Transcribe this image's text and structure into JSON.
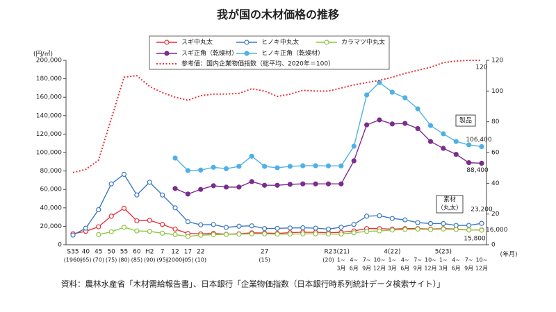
{
  "chart_data": {
    "type": "line",
    "title": "我が国の木材価格の推移",
    "ylabel": "(円/㎥)",
    "xlabel": "(年月)",
    "source": "資料：農林水産省「木材需給報告書」、日本銀行「企業物価指数（日本銀行時系列統計データ検索サイト）」",
    "categories": [
      "S35",
      "40",
      "45",
      "50",
      "55",
      "60",
      "H2",
      "7",
      "12",
      "17",
      "22",
      null,
      null,
      null,
      null,
      "27",
      null,
      null,
      null,
      null,
      "R2",
      "3(21)",
      null,
      null,
      null,
      "4(22)",
      null,
      null,
      null,
      "5(23)",
      null,
      null,
      null
    ],
    "category_row2": [
      "(1960)",
      "(65)",
      "(70)",
      "(75)",
      "(80)",
      "(85)",
      "(90)",
      "(95)",
      "(2000)",
      "(05)",
      "(10)",
      null,
      null,
      null,
      null,
      "(15)",
      null,
      null,
      null,
      null,
      "(20)",
      "1~",
      "4~",
      "7~",
      "10~",
      "1~",
      "4~",
      "7~",
      "10~",
      "1~",
      "4~",
      "7~",
      "10~"
    ],
    "category_row3": [
      null,
      null,
      null,
      null,
      null,
      null,
      null,
      null,
      null,
      null,
      null,
      null,
      null,
      null,
      null,
      null,
      null,
      null,
      null,
      null,
      null,
      "3月",
      "6月",
      "9月",
      "12月",
      "3月",
      "6月",
      "9月",
      "12月",
      "3月",
      "6月",
      "9月",
      "12月"
    ],
    "ylim": [
      0,
      200000
    ],
    "yticks": [
      0,
      {
        "value": 20000,
        "label": "20,000"
      },
      {
        "value": 40000,
        "label": "40,000"
      },
      {
        "value": 60000,
        "label": "60,000"
      },
      {
        "value": 80000,
        "label": "80,000"
      },
      {
        "value": 100000,
        "label": "100,000"
      },
      {
        "value": 120000,
        "label": "120,000"
      },
      {
        "value": 140000,
        "label": "140,000"
      },
      {
        "value": 160000,
        "label": "160,000"
      },
      {
        "value": 180000,
        "label": "180,000"
      },
      {
        "value": 200000,
        "label": "200,000"
      }
    ],
    "y2lim": [
      0,
      120
    ],
    "y2ticks": [
      0,
      20,
      40,
      60,
      80,
      100,
      120
    ],
    "grid": false,
    "annotations": [
      {
        "lines": [
          "製品"
        ]
      },
      {
        "lines": [
          "素材",
          "（丸太）"
        ]
      }
    ],
    "series": [
      {
        "name": "スギ中丸太",
        "color": "#e8303a",
        "marker": "open",
        "values": [
          12000,
          14500,
          19500,
          31000,
          39600,
          26000,
          26500,
          22000,
          17000,
          12200,
          11800,
          12300,
          11400,
          11900,
          12900,
          12700,
          12300,
          13100,
          13600,
          13500,
          13100,
          13400,
          15000,
          17500,
          17500,
          17000,
          17500,
          17500,
          17000,
          17500,
          17000,
          16000,
          16000
        ],
        "value_labels": [
          null,
          null,
          null,
          null,
          null,
          null,
          null,
          null,
          null,
          null,
          null,
          null,
          null,
          null,
          null,
          null,
          null,
          null,
          null,
          null,
          null,
          null,
          null,
          null,
          null,
          null,
          null,
          null,
          null,
          null,
          null,
          null,
          "16,000"
        ]
      },
      {
        "name": "ヒノキ中丸太",
        "color": "#3a78c4",
        "marker": "open",
        "values": [
          10500,
          18000,
          38000,
          66000,
          76400,
          54000,
          67800,
          54000,
          40000,
          25000,
          21600,
          21900,
          18800,
          20100,
          20500,
          17500,
          17800,
          18200,
          18400,
          18000,
          17000,
          19000,
          22000,
          31000,
          31500,
          28500,
          27000,
          24000,
          23000,
          23000,
          21000,
          21000,
          23200
        ],
        "value_labels": [
          null,
          null,
          null,
          null,
          null,
          null,
          null,
          null,
          null,
          null,
          null,
          null,
          null,
          null,
          null,
          null,
          null,
          null,
          null,
          null,
          null,
          null,
          null,
          null,
          null,
          null,
          null,
          null,
          null,
          null,
          null,
          null,
          "23,200"
        ]
      },
      {
        "name": "カラマツ中丸太",
        "color": "#8cc63f",
        "marker": "open",
        "values": [
          null,
          null,
          11000,
          14000,
          19000,
          15000,
          14500,
          12500,
          11000,
          9000,
          10400,
          11000,
          11200,
          11500,
          11800,
          11800,
          11500,
          11600,
          11800,
          11800,
          11600,
          11600,
          13000,
          14500,
          15000,
          16000,
          16500,
          17000,
          16500,
          17000,
          16500,
          16000,
          15800
        ],
        "value_labels": [
          null,
          null,
          null,
          null,
          null,
          null,
          null,
          null,
          null,
          null,
          null,
          null,
          null,
          null,
          null,
          null,
          null,
          null,
          null,
          null,
          null,
          null,
          null,
          null,
          null,
          null,
          null,
          null,
          null,
          null,
          null,
          null,
          "15,800"
        ]
      },
      {
        "name": "スギ正角（乾燥材）",
        "color": "#7b2d8e",
        "marker": "filled",
        "values": [
          null,
          null,
          null,
          null,
          null,
          null,
          null,
          null,
          61000,
          55000,
          60000,
          64000,
          62500,
          62500,
          68500,
          64500,
          64500,
          65500,
          66000,
          66000,
          66000,
          66000,
          91000,
          130000,
          135400,
          131000,
          131600,
          126000,
          112000,
          104500,
          98000,
          89000,
          88400
        ],
        "value_labels": [
          null,
          null,
          null,
          null,
          null,
          null,
          null,
          null,
          null,
          null,
          null,
          null,
          null,
          null,
          null,
          null,
          null,
          null,
          null,
          null,
          null,
          null,
          null,
          null,
          null,
          null,
          null,
          null,
          null,
          null,
          null,
          null,
          "88,400"
        ]
      },
      {
        "name": "ヒノキ正角（乾燥材）",
        "color": "#4fb0e6",
        "marker": "filled",
        "values": [
          null,
          null,
          null,
          null,
          null,
          null,
          null,
          null,
          94000,
          80500,
          81000,
          84000,
          82500,
          85000,
          96000,
          85000,
          83500,
          85000,
          85700,
          85700,
          85500,
          85500,
          106800,
          162400,
          176000,
          165400,
          159400,
          147400,
          129300,
          120300,
          112000,
          108300,
          106400
        ],
        "value_labels": [
          null,
          null,
          null,
          null,
          null,
          null,
          null,
          null,
          null,
          null,
          null,
          null,
          null,
          null,
          null,
          null,
          null,
          null,
          null,
          null,
          null,
          null,
          null,
          null,
          null,
          null,
          null,
          null,
          null,
          null,
          null,
          null,
          "106,400"
        ]
      },
      {
        "name": "参考値：国内企業物価指数（総平均、2020年＝100）",
        "color": "#e8303a",
        "dash": "dotted",
        "axis": "y2",
        "values": [
          47,
          49,
          55,
          82,
          109,
          110,
          103,
          99,
          96,
          94,
          97,
          98,
          98,
          98.5,
          101.5,
          100,
          96.5,
          98,
          100.5,
          100,
          100,
          102,
          104,
          105.5,
          107,
          109,
          111.5,
          113.5,
          115.5,
          118.5,
          119.5,
          120,
          120
        ],
        "value_labels": [
          null,
          null,
          null,
          null,
          null,
          null,
          null,
          null,
          null,
          null,
          null,
          null,
          null,
          null,
          null,
          null,
          null,
          null,
          null,
          null,
          null,
          null,
          null,
          null,
          null,
          null,
          null,
          null,
          null,
          null,
          null,
          null,
          "120"
        ]
      }
    ]
  }
}
